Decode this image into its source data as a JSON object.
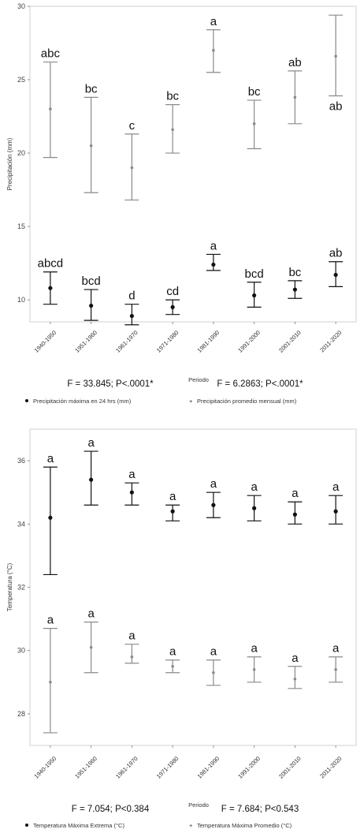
{
  "chart_data": [
    {
      "type": "scatter",
      "ylabel": "Precipitación (mm)",
      "ylim": [
        8.5,
        30
      ],
      "yticks": [
        10,
        15,
        20,
        25,
        30
      ],
      "categories": [
        "1940-1950",
        "1951-1960",
        "1961-1970",
        "1971-1980",
        "1981-1990",
        "1991-2000",
        "2001-2010",
        "2011-2020"
      ],
      "series": [
        {
          "name": "Precipitación máxima en 24 hrs (mm)",
          "color": "#111111",
          "values": [
            10.8,
            9.6,
            8.9,
            9.5,
            12.4,
            10.3,
            10.7,
            11.7
          ],
          "lower": [
            9.7,
            8.6,
            8.3,
            9.0,
            12.0,
            9.5,
            10.1,
            10.9
          ],
          "upper": [
            11.9,
            10.7,
            9.7,
            10.0,
            13.1,
            11.2,
            11.3,
            12.6
          ],
          "letters": [
            "abcd",
            "bcd",
            "d",
            "cd",
            "a",
            "bcd",
            "bc",
            "ab"
          ]
        },
        {
          "name": "Precipitación promedio mensual (mm)",
          "color": "#8a8a8a",
          "values": [
            23.0,
            20.5,
            19.0,
            21.6,
            27.0,
            22.0,
            23.8,
            26.6
          ],
          "lower": [
            19.7,
            17.3,
            16.8,
            20.0,
            25.5,
            20.3,
            22.0,
            23.9
          ],
          "upper": [
            26.2,
            23.8,
            21.3,
            23.3,
            28.4,
            23.6,
            25.6,
            29.4
          ],
          "letters": [
            "abc",
            "bc",
            "c",
            "bc",
            "a",
            "bc",
            "ab",
            "ab"
          ]
        }
      ],
      "stats": [
        "F = 33.845; P<.0001*",
        "F = 6.2863; P<.0001*"
      ],
      "legend_title": "Periodo"
    },
    {
      "type": "scatter",
      "ylabel": "Temperatura (°C)",
      "ylim": [
        27,
        37
      ],
      "yticks": [
        28,
        30,
        32,
        34,
        36
      ],
      "categories": [
        "1940-1950",
        "1951-1960",
        "1961-1970",
        "1971-1980",
        "1981-1990",
        "1991-2000",
        "2001-2010",
        "2011-2020"
      ],
      "series": [
        {
          "name": "Temperatura Máxima Extrema (°C)",
          "color": "#111111",
          "values": [
            34.2,
            35.4,
            35.0,
            34.4,
            34.6,
            34.5,
            34.3,
            34.4
          ],
          "lower": [
            32.4,
            34.6,
            34.6,
            34.1,
            34.2,
            34.1,
            34.0,
            34.0
          ],
          "upper": [
            35.8,
            36.3,
            35.3,
            34.6,
            35.0,
            34.9,
            34.7,
            34.9
          ],
          "letters": [
            "a",
            "a",
            "a",
            "a",
            "a",
            "a",
            "a",
            "a"
          ]
        },
        {
          "name": "Temperatura Máxima Promedio (°C)",
          "color": "#8a8a8a",
          "values": [
            29.0,
            30.1,
            29.8,
            29.5,
            29.3,
            29.4,
            29.1,
            29.4
          ],
          "lower": [
            27.4,
            29.3,
            29.6,
            29.3,
            28.9,
            29.0,
            28.8,
            29.0
          ],
          "upper": [
            30.7,
            30.9,
            30.2,
            29.7,
            29.7,
            29.8,
            29.5,
            29.8
          ],
          "letters": [
            "a",
            "a",
            "a",
            "a",
            "a",
            "a",
            "a",
            "a"
          ]
        }
      ],
      "stats": [
        "F = 7.054; P<0.384",
        "F = 7.684; P<0.543"
      ],
      "legend_title": "Periodo"
    }
  ]
}
